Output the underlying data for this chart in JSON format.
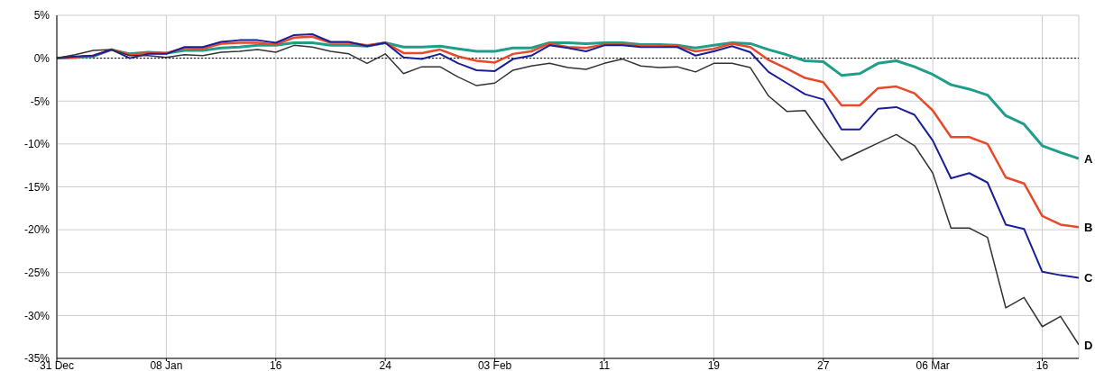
{
  "chart_data": {
    "type": "line",
    "categories": [
      "31 Dec",
      null,
      null,
      null,
      null,
      null,
      "08 Jan",
      null,
      null,
      null,
      null,
      null,
      "16",
      null,
      null,
      null,
      null,
      null,
      "24",
      null,
      null,
      null,
      null,
      null,
      "03 Feb",
      null,
      null,
      null,
      null,
      null,
      "11",
      null,
      null,
      null,
      null,
      null,
      "19",
      null,
      null,
      null,
      null,
      null,
      "27",
      null,
      null,
      null,
      null,
      null,
      "06 Mar",
      null,
      null,
      null,
      null,
      null,
      "16",
      null,
      null
    ],
    "series": [
      {
        "name": "A",
        "color": "#1f9e89",
        "values": [
          0,
          0.1,
          0.2,
          1.0,
          0.5,
          0.7,
          0.6,
          0.9,
          0.9,
          1.2,
          1.3,
          1.5,
          1.5,
          1.8,
          1.8,
          1.5,
          1.5,
          1.4,
          1.8,
          1.3,
          1.3,
          1.4,
          1.1,
          0.8,
          0.8,
          1.2,
          1.2,
          1.8,
          1.8,
          1.7,
          1.8,
          1.8,
          1.6,
          1.6,
          1.5,
          1.2,
          1.5,
          1.8,
          1.7,
          1.0,
          0.4,
          -0.3,
          -0.4,
          -2.0,
          -1.8,
          -0.6,
          -0.3,
          -1.0,
          -1.9,
          -3.1,
          -3.6,
          -4.3,
          -6.7,
          -7.7,
          -10.2,
          -11.0,
          -11.7
        ]
      },
      {
        "name": "B",
        "color": "#e8492a",
        "values": [
          0,
          0.1,
          0.3,
          1.0,
          0.4,
          0.6,
          0.6,
          1.2,
          1.1,
          1.7,
          1.8,
          1.8,
          1.6,
          2.4,
          2.5,
          1.8,
          1.8,
          1.5,
          1.8,
          0.6,
          0.6,
          1.0,
          0.2,
          -0.3,
          -0.5,
          0.5,
          0.8,
          1.7,
          1.3,
          1.2,
          1.6,
          1.6,
          1.5,
          1.5,
          1.4,
          0.8,
          1.1,
          1.7,
          1.3,
          -0.2,
          -1.2,
          -2.3,
          -2.8,
          -5.5,
          -5.5,
          -3.5,
          -3.3,
          -4.1,
          -6.1,
          -9.2,
          -9.2,
          -10.0,
          -13.9,
          -14.6,
          -18.4,
          -19.4,
          -19.7
        ]
      },
      {
        "name": "C",
        "color": "#1a1f96",
        "values": [
          0,
          0.2,
          0.3,
          1.0,
          0,
          0.5,
          0.5,
          1.3,
          1.3,
          1.9,
          2.1,
          2.1,
          1.8,
          2.7,
          2.8,
          1.9,
          1.9,
          1.4,
          1.8,
          0.1,
          -0.1,
          0.5,
          -0.6,
          -1.4,
          -1.5,
          -0.1,
          0.3,
          1.5,
          1.2,
          0.8,
          1.5,
          1.5,
          1.3,
          1.3,
          1.3,
          0.3,
          0.8,
          1.4,
          0.7,
          -1.6,
          -2.9,
          -4.2,
          -4.8,
          -8.3,
          -8.3,
          -5.9,
          -5.7,
          -6.6,
          -9.6,
          -14.0,
          -13.4,
          -14.5,
          -19.4,
          -19.9,
          -24.9,
          -25.3,
          -25.6
        ]
      },
      {
        "name": "D",
        "color": "#333333",
        "values": [
          0,
          0.4,
          0.9,
          1.0,
          0.3,
          0.3,
          0.1,
          0.4,
          0.3,
          0.7,
          0.8,
          1.0,
          0.7,
          1.5,
          1.3,
          0.8,
          0.5,
          -0.6,
          0.5,
          -1.8,
          -1.0,
          -1.0,
          -2.2,
          -3.2,
          -2.9,
          -1.4,
          -0.9,
          -0.6,
          -1.1,
          -1.3,
          -0.6,
          -0.1,
          -0.9,
          -1.1,
          -1.0,
          -1.6,
          -0.6,
          -0.6,
          -1.1,
          -4.4,
          -6.2,
          -6.1,
          -9.1,
          -11.9,
          -10.9,
          -9.9,
          -8.9,
          -10.2,
          -13.4,
          -19.8,
          -19.8,
          -20.9,
          -29.1,
          -27.9,
          -31.3,
          -30.1,
          -33.4
        ]
      }
    ],
    "ylim": [
      -35,
      5
    ],
    "yticks": [
      {
        "value": 5,
        "label": "5%"
      },
      {
        "value": 0,
        "label": "0%"
      },
      {
        "value": -5,
        "label": "-5%"
      },
      {
        "value": -10,
        "label": "-10%"
      },
      {
        "value": -15,
        "label": "-15%"
      },
      {
        "value": -20,
        "label": "-20%"
      },
      {
        "value": -25,
        "label": "-25%"
      },
      {
        "value": -30,
        "label": "-30%"
      },
      {
        "value": -35,
        "label": "-35%"
      }
    ],
    "grid": true,
    "ref_lines": [
      {
        "axis": "y",
        "value": 0,
        "color": "#000000",
        "line_style": "dotted"
      }
    ]
  }
}
